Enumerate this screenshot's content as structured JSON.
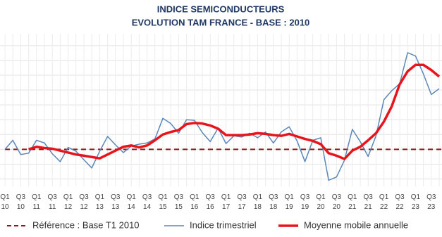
{
  "chart_data": {
    "type": "line",
    "title": "INDICE SEMICONDUCTEURS",
    "subtitle": "EVOLUTION TAM FRANCE - BASE : 2010",
    "categories": [
      [
        "Q1",
        "10"
      ],
      null,
      [
        "Q3",
        "10"
      ],
      null,
      [
        "Q1",
        "11"
      ],
      null,
      [
        "Q3",
        "11"
      ],
      null,
      [
        "Q1",
        "12"
      ],
      null,
      [
        "Q3",
        "12"
      ],
      null,
      [
        "Q1",
        "13"
      ],
      null,
      [
        "Q3",
        "13"
      ],
      null,
      [
        "Q1",
        "14"
      ],
      null,
      [
        "Q3",
        "14"
      ],
      null,
      [
        "Q1",
        "15"
      ],
      null,
      [
        "Q3",
        "15"
      ],
      null,
      [
        "Q1",
        "16"
      ],
      null,
      [
        "Q3",
        "16"
      ],
      null,
      [
        "Q1",
        "17"
      ],
      null,
      [
        "Q3",
        "17"
      ],
      null,
      [
        "Q1",
        "18"
      ],
      null,
      [
        "Q3",
        "18"
      ],
      null,
      [
        "Q1",
        "19"
      ],
      null,
      [
        "Q3",
        "19"
      ],
      null,
      [
        "Q1",
        "20"
      ],
      null,
      [
        "Q3",
        "20"
      ],
      null,
      [
        "Q1",
        "21"
      ],
      null,
      [
        "Q3",
        "21"
      ],
      null,
      [
        "Q1",
        "22"
      ],
      null,
      [
        "Q3",
        "22"
      ],
      null,
      [
        "Q1",
        "23"
      ],
      null,
      [
        "Q3",
        "23"
      ],
      null
    ],
    "reference": {
      "name": "Référence : Base T1 2010",
      "value": 100,
      "color": "#8b1a1a"
    },
    "series": [
      {
        "name": "Indice trimestriel",
        "color": "#5b87b8",
        "width": 1.5,
        "values": [
          100,
          106.1,
          96.5,
          97.4,
          106.1,
          104.3,
          97,
          91.7,
          101.3,
          98.7,
          93,
          87.4,
          98.7,
          108.7,
          103,
          97.8,
          102.2,
          103.5,
          104.3,
          107,
          120.9,
          117.4,
          110.9,
          120,
          119.6,
          111.3,
          105.2,
          114.3,
          103.9,
          109.1,
          108.3,
          110.9,
          107.8,
          111.7,
          104.3,
          111.7,
          115.2,
          105.7,
          91.7,
          106.1,
          107.8,
          79.1,
          81.3,
          92.6,
          113.5,
          105.2,
          95.2,
          109.1,
          133.5,
          139.6,
          144.3,
          165.2,
          163,
          150.9,
          137,
          140.9
        ]
      },
      {
        "name": "Moyenne mobile annuelle",
        "color": "#e8141b",
        "width": 3.5,
        "values": [
          null,
          null,
          null,
          100,
          101.7,
          100.9,
          100.4,
          99.1,
          97.8,
          96.5,
          95.7,
          94.8,
          93.9,
          96.5,
          99.1,
          101.7,
          102.6,
          101.3,
          102.6,
          106.1,
          110,
          111.7,
          113,
          117,
          117.8,
          117.4,
          116.1,
          113.9,
          109.6,
          109.6,
          109.6,
          110,
          110.9,
          110.4,
          109.6,
          109.1,
          110.4,
          108.7,
          107,
          105.7,
          103.5,
          97.4,
          95.7,
          93.5,
          99.1,
          101.7,
          106.1,
          110.9,
          118.7,
          129.1,
          143.9,
          152.6,
          157,
          157,
          153.5,
          149.1
        ]
      }
    ],
    "ylim": [
      75,
      178
    ],
    "yticks": [
      80,
      90,
      100,
      110,
      120,
      130,
      140,
      150,
      160,
      170
    ],
    "grid": true
  }
}
